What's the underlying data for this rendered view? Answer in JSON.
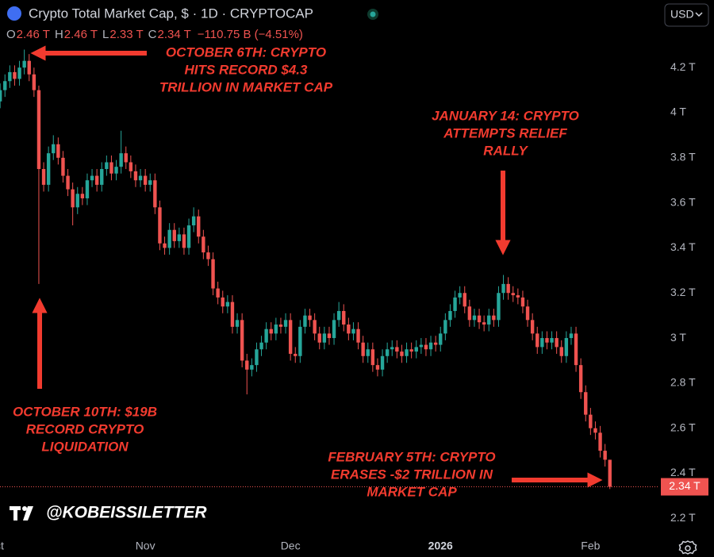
{
  "header": {
    "title": "Crypto Total Market Cap, $ · 1D · CRYPTOCAP",
    "ohlc": [
      {
        "label": "O",
        "value": "2.46 T"
      },
      {
        "label": "H",
        "value": "2.46 T"
      },
      {
        "label": "L",
        "value": "2.33 T"
      },
      {
        "label": "C",
        "value": "2.34 T"
      }
    ],
    "change": "−110.75 B (−4.51%)",
    "currency": "USD"
  },
  "watermark": "@KOBEISSILETTER",
  "chart_data": {
    "type": "candlestick",
    "categories": [
      "Oct",
      null,
      null,
      null,
      null,
      null,
      null,
      null,
      null,
      null,
      null,
      null,
      null,
      null,
      null,
      null,
      null,
      null,
      null,
      null,
      null,
      null,
      null,
      null,
      null,
      null,
      null,
      null,
      null,
      null,
      null,
      "Nov",
      null,
      null,
      null,
      null,
      null,
      null,
      null,
      null,
      null,
      null,
      null,
      null,
      null,
      null,
      null,
      null,
      null,
      null,
      null,
      null,
      null,
      null,
      null,
      null,
      null,
      null,
      null,
      null,
      null,
      "Dec",
      null,
      null,
      null,
      null,
      null,
      null,
      null,
      null,
      null,
      null,
      null,
      null,
      null,
      null,
      null,
      null,
      null,
      null,
      null,
      null,
      null,
      null,
      null,
      null,
      null,
      null,
      null,
      null,
      null,
      null,
      "2026",
      null,
      null,
      null,
      null,
      null,
      null,
      null,
      null,
      null,
      null,
      null,
      null,
      null,
      null,
      null,
      null,
      null,
      null,
      null,
      null,
      null,
      null,
      null,
      null,
      null,
      null,
      null,
      null,
      null,
      null,
      "Feb",
      null,
      null,
      null,
      null
    ],
    "open": [
      4.0,
      4.05,
      4.1,
      4.14,
      4.18,
      4.15,
      4.2,
      4.23,
      4.17,
      4.1,
      3.75,
      3.68,
      3.82,
      3.86,
      3.8,
      3.72,
      3.66,
      3.58,
      3.64,
      3.62,
      3.7,
      3.72,
      3.68,
      3.75,
      3.78,
      3.73,
      3.76,
      3.82,
      3.78,
      3.74,
      3.7,
      3.72,
      3.68,
      3.7,
      3.58,
      3.42,
      3.4,
      3.48,
      3.43,
      3.46,
      3.4,
      3.5,
      3.54,
      3.45,
      3.38,
      3.35,
      3.22,
      3.18,
      3.14,
      3.16,
      3.05,
      3.08,
      2.9,
      2.86,
      2.88,
      2.95,
      2.98,
      3.04,
      3.02,
      3.06,
      3.05,
      3.08,
      2.93,
      2.92,
      3.05,
      3.1,
      3.08,
      3.02,
      2.98,
      3.02,
      3.0,
      3.08,
      3.12,
      3.06,
      3.02,
      3.04,
      2.98,
      2.92,
      2.95,
      2.88,
      2.86,
      2.92,
      2.95,
      2.96,
      2.94,
      2.92,
      2.95,
      2.94,
      2.96,
      2.97,
      2.95,
      2.98,
      2.97,
      3.02,
      3.08,
      3.12,
      3.18,
      3.2,
      3.14,
      3.08,
      3.1,
      3.07,
      3.06,
      3.1,
      3.08,
      3.2,
      3.24,
      3.2,
      3.19,
      3.18,
      3.14,
      3.08,
      3.02,
      2.96,
      3.0,
      2.98,
      3.0,
      2.96,
      2.92,
      3.0,
      3.02,
      2.88,
      2.76,
      2.66,
      2.6,
      2.58,
      2.5,
      2.46
    ],
    "high": [
      4.08,
      4.13,
      4.17,
      4.21,
      4.21,
      4.23,
      4.28,
      4.26,
      4.2,
      4.12,
      3.78,
      3.85,
      3.9,
      3.89,
      3.83,
      3.75,
      3.69,
      3.67,
      3.67,
      3.73,
      3.75,
      3.75,
      3.78,
      3.81,
      3.81,
      3.79,
      3.92,
      3.85,
      3.81,
      3.77,
      3.75,
      3.75,
      3.73,
      3.73,
      3.61,
      3.45,
      3.51,
      3.51,
      3.49,
      3.49,
      3.53,
      3.58,
      3.57,
      3.48,
      3.41,
      3.38,
      3.25,
      3.21,
      3.19,
      3.19,
      3.11,
      3.11,
      2.93,
      2.91,
      2.98,
      3.01,
      3.07,
      3.07,
      3.09,
      3.09,
      3.11,
      3.11,
      2.96,
      3.08,
      3.13,
      3.13,
      3.11,
      3.05,
      3.05,
      3.05,
      3.11,
      3.16,
      3.15,
      3.09,
      3.07,
      3.07,
      3.01,
      2.98,
      2.98,
      2.91,
      2.95,
      2.98,
      2.99,
      2.99,
      2.97,
      2.98,
      2.98,
      2.99,
      3.0,
      3.0,
      3.01,
      3.01,
      3.05,
      3.11,
      3.15,
      3.21,
      3.23,
      3.23,
      3.17,
      3.13,
      3.13,
      3.1,
      3.13,
      3.13,
      3.23,
      3.28,
      3.27,
      3.23,
      3.22,
      3.21,
      3.17,
      3.11,
      3.05,
      3.03,
      3.03,
      3.03,
      3.03,
      2.99,
      3.03,
      3.05,
      3.05,
      2.91,
      2.79,
      2.69,
      2.63,
      2.61,
      2.53,
      2.46
    ],
    "low": [
      3.97,
      4.02,
      4.07,
      4.11,
      4.12,
      4.12,
      4.17,
      4.14,
      4.07,
      3.24,
      3.65,
      3.65,
      3.79,
      3.77,
      3.69,
      3.63,
      3.5,
      3.55,
      3.59,
      3.59,
      3.67,
      3.65,
      3.65,
      3.72,
      3.7,
      3.7,
      3.73,
      3.75,
      3.71,
      3.67,
      3.67,
      3.65,
      3.65,
      3.55,
      3.39,
      3.37,
      3.37,
      3.4,
      3.4,
      3.37,
      3.37,
      3.47,
      3.42,
      3.35,
      3.32,
      3.19,
      3.15,
      3.11,
      3.11,
      3.02,
      3.02,
      2.87,
      2.75,
      2.83,
      2.85,
      2.92,
      2.95,
      2.99,
      2.99,
      3.02,
      3.02,
      2.9,
      2.89,
      2.89,
      3.02,
      3.05,
      2.99,
      2.95,
      2.95,
      2.97,
      2.97,
      3.05,
      3.03,
      2.99,
      2.99,
      2.95,
      2.89,
      2.89,
      2.85,
      2.83,
      2.83,
      2.89,
      2.92,
      2.91,
      2.89,
      2.89,
      2.91,
      2.91,
      2.93,
      2.92,
      2.92,
      2.94,
      2.94,
      2.99,
      3.05,
      3.09,
      3.15,
      3.11,
      3.05,
      3.05,
      3.04,
      3.03,
      3.03,
      3.05,
      3.05,
      3.17,
      3.17,
      3.16,
      3.15,
      3.11,
      3.05,
      2.99,
      2.93,
      2.93,
      2.95,
      2.95,
      2.93,
      2.89,
      2.89,
      2.97,
      2.85,
      2.73,
      2.63,
      2.57,
      2.55,
      2.47,
      2.43,
      2.33
    ],
    "close": [
      4.05,
      4.1,
      4.14,
      4.18,
      4.15,
      4.2,
      4.23,
      4.17,
      4.1,
      3.75,
      3.68,
      3.82,
      3.86,
      3.8,
      3.72,
      3.66,
      3.58,
      3.64,
      3.62,
      3.7,
      3.72,
      3.68,
      3.75,
      3.78,
      3.73,
      3.76,
      3.82,
      3.78,
      3.74,
      3.7,
      3.72,
      3.68,
      3.7,
      3.58,
      3.42,
      3.4,
      3.48,
      3.43,
      3.46,
      3.4,
      3.5,
      3.54,
      3.45,
      3.38,
      3.35,
      3.22,
      3.18,
      3.14,
      3.16,
      3.05,
      3.08,
      2.9,
      2.86,
      2.88,
      2.95,
      2.98,
      3.04,
      3.02,
      3.06,
      3.05,
      3.08,
      2.93,
      2.92,
      3.05,
      3.1,
      3.08,
      3.02,
      2.98,
      3.02,
      3.0,
      3.08,
      3.12,
      3.06,
      3.02,
      3.04,
      2.98,
      2.92,
      2.95,
      2.88,
      2.86,
      2.92,
      2.95,
      2.96,
      2.94,
      2.92,
      2.95,
      2.94,
      2.96,
      2.97,
      2.95,
      2.98,
      2.97,
      3.02,
      3.08,
      3.12,
      3.18,
      3.2,
      3.14,
      3.08,
      3.1,
      3.07,
      3.06,
      3.1,
      3.08,
      3.2,
      3.24,
      3.2,
      3.19,
      3.18,
      3.14,
      3.08,
      3.02,
      2.96,
      3.0,
      2.98,
      3.0,
      2.96,
      2.92,
      3.0,
      3.02,
      2.88,
      2.76,
      2.66,
      2.6,
      2.58,
      2.5,
      2.46,
      2.34
    ],
    "up_color": "#26a69a",
    "down_color": "#ef5350",
    "ylim": [
      2.12,
      4.5
    ],
    "yticks": [
      {
        "value": 2.2,
        "label": "2.2 T"
      },
      {
        "value": 2.4,
        "label": "2.4 T"
      },
      {
        "value": 2.6,
        "label": "2.6 T"
      },
      {
        "value": 2.8,
        "label": "2.8 T"
      },
      {
        "value": 3,
        "label": "3 T"
      },
      {
        "value": 3.2,
        "label": "3.2 T"
      },
      {
        "value": 3.4,
        "label": "3.4 T"
      },
      {
        "value": 3.6,
        "label": "3.6 T"
      },
      {
        "value": 3.8,
        "label": "3.8 T"
      },
      {
        "value": 4,
        "label": "4 T"
      },
      {
        "value": 4.2,
        "label": "4.2 T"
      }
    ],
    "last_price": {
      "value": 2.34,
      "label": "2.34 T"
    },
    "annotations": [
      {
        "lines": [
          "OCTOBER 6TH: CRYPTO",
          "HITS RECORD $4.3",
          "TRILLION IN MARKET CAP"
        ]
      },
      {
        "lines": [
          "JANUARY 14: CRYPTO",
          "ATTEMPTS RELIEF",
          "RALLY"
        ]
      },
      {
        "lines": [
          "OCTOBER 10TH: $19B",
          "RECORD CRYPTO",
          "LIQUIDATION"
        ]
      },
      {
        "lines": [
          "FEBRUARY 5TH: CRYPTO",
          "ERASES -$2 TRILLION IN",
          "MARKET CAP"
        ]
      }
    ]
  }
}
